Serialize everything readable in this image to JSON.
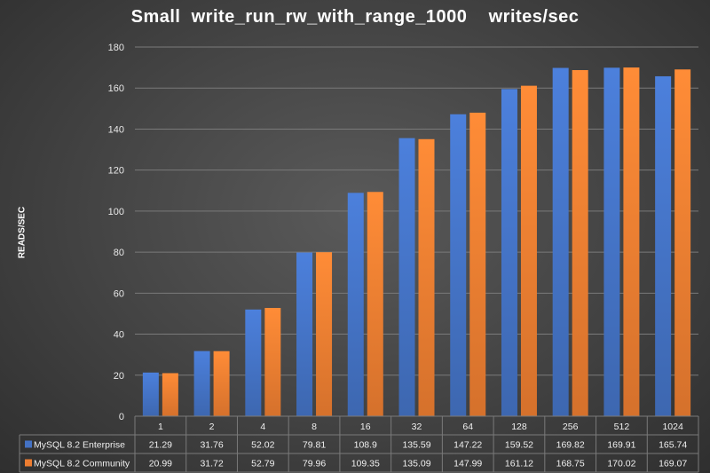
{
  "chart_data": {
    "type": "bar",
    "title": "Small  write_run_rw_with_range_1000    writes/sec",
    "xlabel": "",
    "ylabel": "READS/SEC",
    "ylim": [
      0,
      180
    ],
    "yticks": [
      0,
      20,
      40,
      60,
      80,
      100,
      120,
      140,
      160,
      180
    ],
    "grid": true,
    "legend": "data-table-bottom",
    "categories": [
      "1",
      "2",
      "4",
      "8",
      "16",
      "32",
      "64",
      "128",
      "256",
      "512",
      "1024"
    ],
    "series": [
      {
        "name": "MySQL 8.2 Enterprise",
        "color": "#4472c4",
        "values": [
          21.29,
          31.76,
          52.02,
          79.81,
          108.9,
          135.59,
          147.22,
          159.52,
          169.82,
          169.91,
          165.74
        ],
        "labels": [
          "21.29",
          "31.76",
          "52.02",
          "79.81",
          "108.9",
          "135.59",
          "147.22",
          "159.52",
          "169.82",
          "169.91",
          "165.74"
        ]
      },
      {
        "name": "MySQL 8.2 Community",
        "color": "#ed7d31",
        "values": [
          20.99,
          31.72,
          52.79,
          79.96,
          109.35,
          135.09,
          147.99,
          161.12,
          168.75,
          170.02,
          169.07
        ],
        "labels": [
          "20.99",
          "31.72",
          "52.79",
          "79.96",
          "109.35",
          "135.09",
          "147.99",
          "161.12",
          "168.75",
          "170.02",
          "169.07"
        ]
      }
    ]
  }
}
